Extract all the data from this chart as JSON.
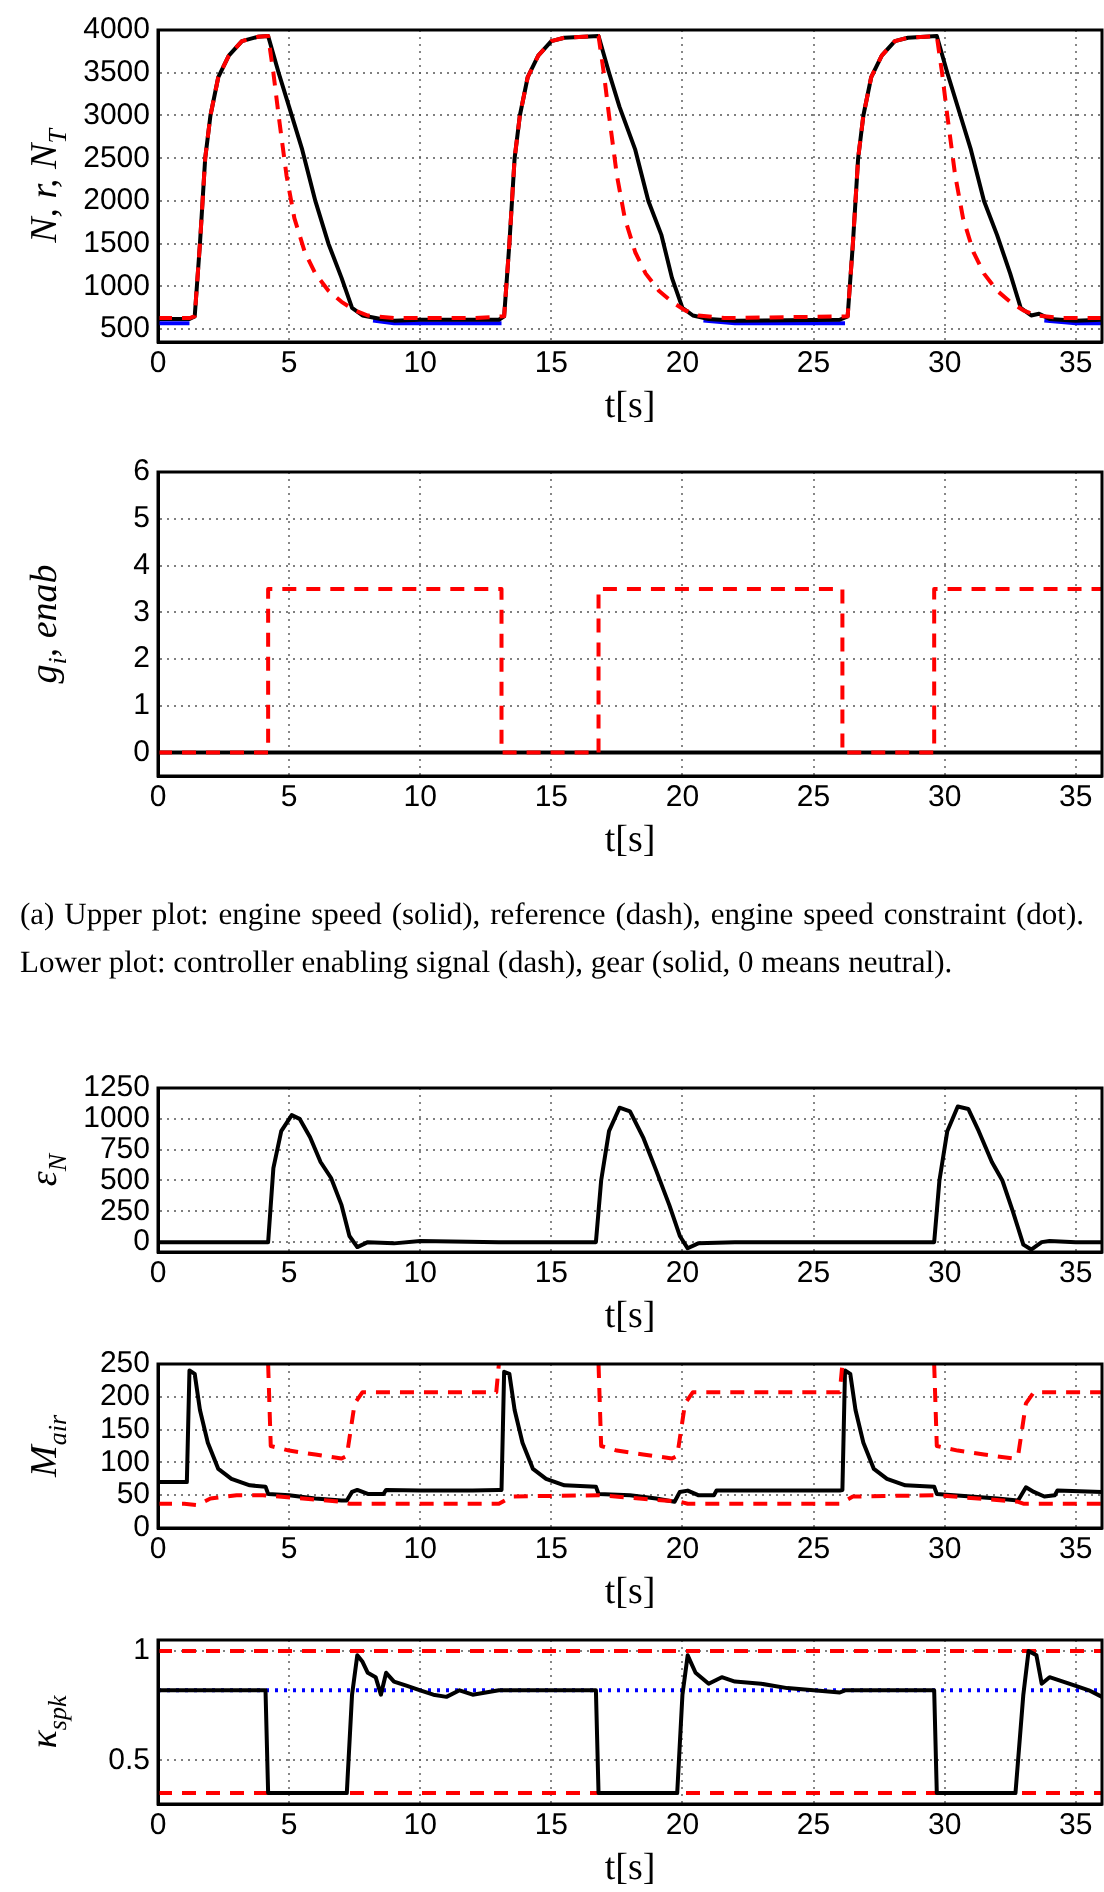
{
  "chart_data": [
    {
      "type": "line",
      "ylabel": "N, r, N$_{T}$",
      "xlabel": "t[s]",
      "xlim": [
        0,
        36
      ],
      "xticks": [
        0,
        5,
        10,
        15,
        20,
        25,
        30,
        35
      ],
      "ylim": [
        350,
        4000
      ],
      "yticks": [
        500,
        1000,
        1500,
        2000,
        2500,
        3000,
        3500,
        4000
      ],
      "grid": true,
      "legend": false,
      "marker": "none",
      "series": [
        {
          "color": "#0000ff",
          "line_style": "solid",
          "x": [
            0,
            1.2,
            1.3,
            8.2,
            9,
            10,
            12,
            13.1,
            13.2,
            20.8,
            22,
            26.2,
            26.3,
            33.8,
            35,
            36
          ],
          "values": [
            570,
            570,
            null,
            600,
            570,
            570,
            570,
            570,
            null,
            600,
            570,
            570,
            null,
            600,
            570,
            570
          ]
        },
        {
          "color": "#000000",
          "line_style": "solid",
          "x": [
            0,
            1.2,
            1.4,
            1.6,
            1.8,
            2,
            2.3,
            2.7,
            3.2,
            3.8,
            4.2,
            4.6,
            5,
            5.5,
            6,
            6.5,
            7,
            7.4,
            7.8,
            8.5,
            9,
            10,
            12,
            13,
            13.2,
            13.4,
            13.6,
            13.8,
            14.1,
            14.5,
            15,
            15.5,
            16.8,
            17.2,
            17.6,
            18.2,
            18.7,
            19.2,
            19.6,
            20,
            20.4,
            21,
            22,
            26,
            26.3,
            26.5,
            26.7,
            26.9,
            27.2,
            27.6,
            28.1,
            28.6,
            29.7,
            30.1,
            30.6,
            31,
            31.5,
            32,
            32.5,
            32.9,
            33.3,
            33.6,
            34,
            35,
            36
          ],
          "values": [
            620,
            620,
            650,
            1500,
            2500,
            3000,
            3450,
            3700,
            3870,
            3920,
            3930,
            3500,
            3100,
            2600,
            2000,
            1500,
            1100,
            750,
            660,
            620,
            600,
            610,
            610,
            610,
            650,
            1500,
            2500,
            3000,
            3450,
            3700,
            3870,
            3910,
            3930,
            3500,
            3100,
            2600,
            2000,
            1600,
            1100,
            750,
            660,
            620,
            600,
            610,
            650,
            1500,
            2500,
            3000,
            3450,
            3700,
            3870,
            3910,
            3930,
            3500,
            3000,
            2600,
            2000,
            1600,
            1150,
            750,
            660,
            680,
            620,
            600,
            610
          ]
        },
        {
          "color": "#ff0000",
          "line_style": "dashed",
          "x": [
            0,
            1.2,
            1.4,
            1.6,
            1.8,
            2,
            2.3,
            2.7,
            3.2,
            3.8,
            4.2,
            4.4,
            4.6,
            4.9,
            5.2,
            5.6,
            6,
            6.5,
            7,
            7.5,
            8,
            9,
            12,
            13.2,
            13.4,
            13.6,
            13.8,
            14.1,
            14.5,
            15,
            15.5,
            16.8,
            17,
            17.2,
            17.5,
            17.8,
            18.2,
            18.6,
            19.1,
            19.6,
            20.1,
            20.6,
            21.6,
            26.3,
            26.5,
            26.7,
            26.9,
            27.2,
            27.6,
            28.1,
            28.6,
            29.7,
            29.9,
            30.1,
            30.4,
            30.7,
            31.1,
            31.5,
            32,
            32.5,
            33,
            33.5,
            34.5,
            36
          ],
          "values": [
            630,
            630,
            650,
            1500,
            2500,
            3000,
            3450,
            3700,
            3870,
            3920,
            3930,
            3500,
            3000,
            2300,
            1800,
            1400,
            1150,
            950,
            820,
            720,
            660,
            630,
            630,
            650,
            1500,
            2500,
            3000,
            3450,
            3700,
            3870,
            3910,
            3930,
            3500,
            3000,
            2300,
            1800,
            1400,
            1150,
            950,
            820,
            720,
            660,
            630,
            650,
            1500,
            2500,
            3000,
            3450,
            3700,
            3870,
            3910,
            3930,
            3500,
            3000,
            2300,
            1800,
            1400,
            1150,
            950,
            820,
            720,
            660,
            630,
            630
          ]
        }
      ]
    },
    {
      "type": "step",
      "ylabel": "g$_{i}$, enab",
      "xlabel": "t[s]",
      "xlim": [
        0,
        36
      ],
      "xticks": [
        0,
        5,
        10,
        15,
        20,
        25,
        30,
        35
      ],
      "ylim": [
        -0.5,
        6
      ],
      "yticks": [
        0,
        1,
        2,
        3,
        4,
        5,
        6
      ],
      "grid": true,
      "legend": false,
      "marker": "none",
      "annotations": [
        "(a) Upper plot: engine speed (solid), reference (dash), engine speed constraint (dot). Lower plot: controller enabling signal (dash), gear (solid, 0 means neutral)."
      ],
      "series": [
        {
          "color": "#000000",
          "line_style": "solid",
          "x": [
            0,
            36
          ],
          "values": [
            0,
            0
          ]
        },
        {
          "color": "#ff0000",
          "line_style": "dashed",
          "x": [
            0,
            4.2,
            13.1,
            16.8,
            26.1,
            29.6,
            36
          ],
          "values": [
            0,
            3.5,
            0,
            3.5,
            0,
            3.5,
            3.5
          ]
        }
      ]
    },
    {
      "type": "line",
      "ylabel": "ε$_{N}$",
      "xlabel": "t[s]",
      "xlim": [
        0,
        36
      ],
      "xticks": [
        0,
        5,
        10,
        15,
        20,
        25,
        30,
        35
      ],
      "ylim": [
        -80,
        1250
      ],
      "yticks": [
        0,
        250,
        500,
        750,
        1000,
        1250
      ],
      "grid": true,
      "legend": false,
      "marker": "none",
      "series": [
        {
          "color": "#000000",
          "line_style": "solid",
          "x": [
            0,
            4.1,
            4.2,
            4.4,
            4.7,
            5.1,
            5.4,
            5.8,
            6.2,
            6.6,
            7,
            7.3,
            7.6,
            8,
            9,
            10,
            13,
            16.7,
            16.9,
            17.2,
            17.6,
            18,
            18.5,
            19,
            19.5,
            19.9,
            20.2,
            20.6,
            22,
            26,
            29.6,
            29.8,
            30.1,
            30.5,
            30.9,
            31.3,
            31.8,
            32.2,
            32.6,
            33,
            33.3,
            33.7,
            34,
            35,
            36
          ],
          "values": [
            0,
            0,
            0,
            600,
            900,
            1030,
            1000,
            850,
            650,
            520,
            300,
            50,
            -40,
            0,
            -10,
            10,
            0,
            0,
            500,
            900,
            1090,
            1060,
            850,
            580,
            300,
            50,
            -50,
            -10,
            0,
            0,
            0,
            500,
            900,
            1100,
            1080,
            900,
            650,
            500,
            250,
            -20,
            -60,
            0,
            10,
            0,
            0
          ]
        }
      ]
    },
    {
      "type": "line",
      "ylabel": "M$_{air}$",
      "xlabel": "t[s]",
      "xlim": [
        0,
        36
      ],
      "xticks": [
        0,
        5,
        10,
        15,
        20,
        25,
        30,
        35
      ],
      "ylim": [
        0,
        250
      ],
      "yticks": [
        0,
        50,
        100,
        150,
        200,
        250
      ],
      "grid": true,
      "legend": false,
      "marker": "none",
      "series": [
        {
          "color": "#000000",
          "line_style": "solid",
          "x": [
            0,
            1.1,
            1.2,
            1.4,
            1.6,
            1.9,
            2.3,
            2.8,
            3.5,
            4.1,
            4.2,
            5,
            6,
            7,
            7.2,
            7.4,
            7.6,
            8,
            8.6,
            8.7,
            10,
            12,
            13,
            13.1,
            13.2,
            13.4,
            13.6,
            13.9,
            14.3,
            14.8,
            15.5,
            16.7,
            16.8,
            18,
            19,
            19.7,
            19.9,
            20.2,
            20.6,
            21.2,
            21.3,
            26,
            26.1,
            26.2,
            26.4,
            26.6,
            26.9,
            27.3,
            27.8,
            28.5,
            29.6,
            29.7,
            31,
            32,
            32.8,
            33.1,
            33.4,
            33.8,
            34.2,
            34.3,
            36
          ],
          "values": [
            70,
            70,
            240,
            235,
            180,
            130,
            90,
            75,
            65,
            63,
            52,
            50,
            45,
            42,
            42,
            55,
            58,
            52,
            52,
            58,
            57,
            57,
            58,
            58,
            238,
            235,
            180,
            130,
            90,
            75,
            65,
            63,
            52,
            50,
            45,
            40,
            55,
            57,
            50,
            50,
            57,
            57,
            58,
            240,
            235,
            180,
            130,
            90,
            75,
            65,
            63,
            52,
            48,
            45,
            42,
            62,
            55,
            48,
            50,
            57,
            55
          ]
        },
        {
          "color": "#ff0000",
          "line_style": "dashed",
          "x": [
            0,
            1,
            1.5,
            2,
            3,
            4,
            7,
            7.3,
            13,
            13.5,
            16.8,
            19.9,
            20.2,
            26,
            26.5,
            29.7,
            32.8,
            33,
            36
          ],
          "values": [
            37,
            37,
            35,
            45,
            50,
            50,
            40,
            37,
            37,
            48,
            50,
            40,
            37,
            37,
            48,
            50,
            40,
            37,
            37
          ]
        },
        {
          "color": "#ff0000",
          "line_style": "dashed",
          "x": [
            4.2,
            4.3,
            5,
            6,
            7,
            7.2,
            7.5,
            7.8,
            12.9,
            13,
            15,
            16.8,
            16.9,
            17.5,
            18.5,
            19.6,
            19.8,
            20.1,
            20.4,
            26,
            26.1,
            28,
            29.6,
            29.7,
            30.5,
            31.5,
            32.6,
            32.8,
            33.1,
            33.4,
            36
          ],
          "values": [
            250,
            125,
            118,
            112,
            106,
            110,
            190,
            207,
            207,
            250,
            null,
            250,
            125,
            118,
            112,
            106,
            110,
            190,
            207,
            207,
            250,
            null,
            250,
            125,
            118,
            112,
            106,
            110,
            190,
            207,
            207
          ]
        }
      ]
    },
    {
      "type": "line",
      "ylabel": "κ$_{spk}$",
      "xlabel": "t[s]",
      "xlim": [
        0,
        36
      ],
      "xticks": [
        0,
        5,
        10,
        15,
        20,
        25,
        30,
        35
      ],
      "ylim": [
        0.3,
        1.05
      ],
      "yticks": [
        0.5,
        1
      ],
      "grid": true,
      "legend": false,
      "marker": "none",
      "ref_lines": [
        {
          "axis": "y",
          "value": 1,
          "color": "#ff0000",
          "line_style": "dashed"
        },
        {
          "axis": "y",
          "value": 0.35,
          "color": "#ff0000",
          "line_style": "dashed"
        },
        {
          "axis": "y",
          "value": 0.82,
          "color": "#0000ff",
          "line_style": "dotted"
        }
      ],
      "series": [
        {
          "color": "#000000",
          "line_style": "solid",
          "x": [
            0,
            4.1,
            4.2,
            7.2,
            7.4,
            7.6,
            7.8,
            8,
            8.3,
            8.5,
            8.7,
            9,
            9.5,
            10,
            10.5,
            11,
            11.5,
            12,
            12.5,
            13,
            16.7,
            16.8,
            19.8,
            20,
            20.2,
            20.5,
            21,
            21.5,
            22,
            23,
            24,
            25,
            26,
            26.2,
            29.6,
            29.7,
            32.7,
            33,
            33.2,
            33.5,
            33.7,
            34,
            35,
            35.5,
            36
          ],
          "values": [
            0.82,
            0.82,
            0.35,
            0.35,
            0.8,
            0.98,
            0.95,
            0.9,
            0.88,
            0.8,
            0.9,
            0.86,
            0.84,
            0.82,
            0.8,
            0.79,
            0.82,
            0.8,
            0.81,
            0.82,
            0.82,
            0.35,
            0.35,
            0.8,
            0.98,
            0.9,
            0.85,
            0.88,
            0.86,
            0.85,
            0.83,
            0.82,
            0.81,
            0.82,
            0.82,
            0.35,
            0.35,
            0.8,
            1,
            0.98,
            0.85,
            0.88,
            0.84,
            0.82,
            0.79
          ]
        }
      ]
    }
  ]
}
